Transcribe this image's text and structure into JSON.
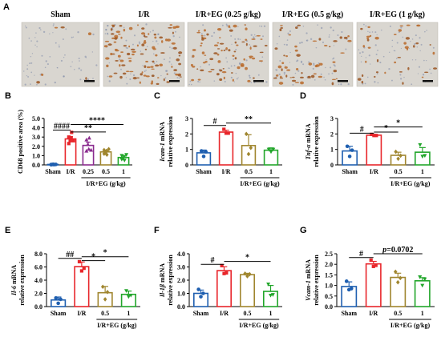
{
  "colors": {
    "Sham": "#1f5fb0",
    "I/R": "#e8262b",
    "I/R+EG (0.25 g/kg)": "#8a2b8e",
    "I/R+EG (0.5 g/kg)": "#a0862f",
    "I/R+EG (1 g/kg)": "#22a62b",
    "scale_bar": "#111111",
    "tissue_bg": "#d9d6d0"
  },
  "panels": {
    "A": {
      "label": "A",
      "images": [
        {
          "title": "Sham",
          "stain_density": 0.05
        },
        {
          "title": "I/R",
          "stain_density": 0.95
        },
        {
          "title": "I/R+EG (0.25 g/kg)",
          "stain_density": 0.7
        },
        {
          "title": "I/R+EG (0.5 g/kg)",
          "stain_density": 0.5
        },
        {
          "title": "I/R+EG (1 g/kg)",
          "stain_density": 0.35
        }
      ]
    }
  },
  "chart_data": [
    {
      "id": "B",
      "panel_label": "B",
      "type": "bar",
      "ylabel": "CD68 positive area (%)",
      "ylim": [
        0,
        5
      ],
      "yticks": [
        0,
        1,
        2,
        3,
        4,
        5
      ],
      "yticklabels": [
        "0.0",
        "1.0",
        "2.0",
        "3.0",
        "4.0",
        "5.0"
      ],
      "categories": [
        "Sham",
        "I/R",
        "0.25",
        "0.5",
        "1"
      ],
      "values": [
        0.05,
        2.8,
        2.1,
        1.4,
        0.8
      ],
      "errors": [
        0.03,
        0.25,
        0.35,
        0.15,
        0.15
      ],
      "points": [
        [
          0.02,
          0.04,
          0.05,
          0.06,
          0.03,
          0.05
        ],
        [
          3.0,
          2.3,
          2.6,
          2.9,
          3.5,
          2.6
        ],
        [
          2.7,
          1.5,
          2.2,
          1.7,
          2.9,
          1.6
        ],
        [
          1.2,
          1.6,
          1.3,
          1.5,
          1.1,
          1.7
        ],
        [
          0.6,
          1.0,
          0.7,
          0.9,
          0.5,
          1.1
        ]
      ],
      "group_label": "I/R+EG (g/kg)",
      "group_span": [
        2,
        4
      ],
      "sigs": [
        {
          "from": 0,
          "to": 1,
          "text": "####",
          "y": 3.75
        },
        {
          "from": 1,
          "to": 4,
          "text": "****",
          "y": 4.35
        },
        {
          "from": 1,
          "to": 3,
          "text": "**",
          "y": 3.55
        }
      ]
    },
    {
      "id": "C",
      "panel_label": "C",
      "type": "bar",
      "ylabel": "Icam-1 mRNA",
      "ylabel_gene": "Icam-1",
      "ylabel_suffix": " mRNA",
      "ylabel2": "relative expression",
      "ylim": [
        0,
        3
      ],
      "yticks": [
        0,
        1,
        2,
        3
      ],
      "yticklabels": [
        "0",
        "1",
        "2",
        "3"
      ],
      "categories": [
        "Sham",
        "I/R",
        "0.5",
        "1"
      ],
      "values": [
        0.78,
        2.12,
        1.25,
        0.95
      ],
      "errors": [
        0.18,
        0.12,
        0.7,
        0.15
      ],
      "points": [
        [
          0.9,
          0.55,
          0.85
        ],
        [
          2.3,
          2.05,
          2.05
        ],
        [
          2.0,
          0.7,
          1.1
        ],
        [
          1.0,
          0.85,
          1.0
        ]
      ],
      "group_label": "I/R+EG (g/kg)",
      "group_span": [
        2,
        3
      ],
      "sigs": [
        {
          "from": 0,
          "to": 1,
          "text": "#",
          "y": 2.55
        },
        {
          "from": 1,
          "to": 3,
          "text": "**",
          "y": 2.7
        }
      ]
    },
    {
      "id": "D",
      "panel_label": "D",
      "type": "bar",
      "ylabel": "Tnf-α mRNA",
      "ylabel_gene": "Tnf-α",
      "ylabel_suffix": " mRNA",
      "ylabel2": "relative expression",
      "ylim": [
        0,
        3
      ],
      "yticks": [
        0,
        1,
        2,
        3
      ],
      "yticklabels": [
        "0",
        "1",
        "2",
        "3"
      ],
      "categories": [
        "Sham",
        "I/R",
        "0.5",
        "1"
      ],
      "values": [
        0.9,
        1.92,
        0.62,
        0.82
      ],
      "errors": [
        0.3,
        0.05,
        0.2,
        0.3
      ],
      "points": [
        [
          1.2,
          0.55,
          0.95
        ],
        [
          1.97,
          1.9,
          1.9
        ],
        [
          0.85,
          0.4,
          0.6
        ],
        [
          1.3,
          0.55,
          0.6
        ]
      ],
      "group_label": "I/R+EG (g/kg)",
      "group_span": [
        2,
        3
      ],
      "sigs": [
        {
          "from": 0,
          "to": 1,
          "text": "#",
          "y": 2.05
        },
        {
          "from": 1,
          "to": 3,
          "text": "*",
          "y": 2.45
        },
        {
          "from": 1,
          "to": 2,
          "text": "*",
          "y": 2.12
        }
      ]
    },
    {
      "id": "E",
      "panel_label": "E",
      "type": "bar",
      "ylabel": "Il-6 mRNA",
      "ylabel_gene": "Il-6",
      "ylabel_suffix": " mRNA",
      "ylabel2": "relative expression",
      "ylim": [
        0,
        8
      ],
      "yticks": [
        0,
        2,
        4,
        6,
        8
      ],
      "yticklabels": [
        "0.0",
        "2.0",
        "4.0",
        "6.0",
        "8.0"
      ],
      "categories": [
        "Sham",
        "I/R",
        "0.5",
        "1"
      ],
      "values": [
        1.0,
        6.05,
        2.1,
        1.85
      ],
      "errors": [
        0.45,
        0.7,
        0.95,
        0.5
      ],
      "points": [
        [
          1.3,
          0.5,
          1.1
        ],
        [
          6.8,
          5.4,
          5.8
        ],
        [
          3.0,
          1.1,
          2.2
        ],
        [
          2.4,
          1.5,
          1.7
        ]
      ],
      "group_label": "I/R+EG (g/kg)",
      "group_span": [
        2,
        3
      ],
      "sigs": [
        {
          "from": 0,
          "to": 1,
          "text": "##",
          "y": 7.3
        },
        {
          "from": 1,
          "to": 3,
          "text": "*",
          "y": 7.55
        },
        {
          "from": 1,
          "to": 2,
          "text": "*",
          "y": 6.95
        }
      ]
    },
    {
      "id": "F",
      "panel_label": "F",
      "type": "bar",
      "ylabel": "Il-1β mRNA",
      "ylabel_gene": "Il-1β",
      "ylabel_suffix": " mRNA",
      "ylabel2": "relative expression",
      "ylim": [
        0,
        4
      ],
      "yticks": [
        0,
        1,
        2,
        3,
        4
      ],
      "yticklabels": [
        "0.0",
        "1.0",
        "2.0",
        "3.0",
        "4.0"
      ],
      "categories": [
        "Sham",
        "I/R",
        "0.5",
        "1"
      ],
      "values": [
        1.0,
        2.72,
        2.42,
        1.15
      ],
      "errors": [
        0.25,
        0.3,
        0.1,
        0.45
      ],
      "points": [
        [
          1.3,
          0.75,
          1.0
        ],
        [
          3.1,
          2.5,
          2.55
        ],
        [
          2.5,
          2.3,
          2.45
        ],
        [
          1.7,
          0.85,
          0.9
        ]
      ],
      "group_label": "I/R+EG (g/kg)",
      "group_span": [
        2,
        3
      ],
      "sigs": [
        {
          "from": 0,
          "to": 1,
          "text": "#",
          "y": 3.2
        },
        {
          "from": 1,
          "to": 3,
          "text": "*",
          "y": 3.42
        }
      ]
    },
    {
      "id": "G",
      "panel_label": "G",
      "type": "bar",
      "ylabel": "Vcam-1 mRNA",
      "ylabel_gene": "Vcam-1",
      "ylabel_suffix": " mRNA",
      "ylabel2": "relative expression",
      "ylim": [
        0,
        2.5
      ],
      "yticks": [
        0,
        0.5,
        1.0,
        1.5,
        2.0,
        2.5
      ],
      "yticklabels": [
        "0.0",
        "0.5",
        "1.0",
        "1.5",
        "2.0",
        "2.5"
      ],
      "categories": [
        "Sham",
        "I/R",
        "0.5",
        "1"
      ],
      "values": [
        0.95,
        2.02,
        1.38,
        1.22
      ],
      "errors": [
        0.22,
        0.12,
        0.2,
        0.15
      ],
      "points": [
        [
          1.2,
          0.8,
          0.85
        ],
        [
          2.2,
          1.9,
          1.95
        ],
        [
          1.65,
          1.15,
          1.35
        ],
        [
          1.4,
          1.0,
          1.3
        ]
      ],
      "group_label": "I/R+EG (g/kg)",
      "group_span": [
        2,
        3
      ],
      "sigs": [
        {
          "from": 0,
          "to": 1,
          "text": "#",
          "y": 2.32
        },
        {
          "from": 1,
          "to": 3,
          "text": "p=0.0702",
          "y": 2.5,
          "italic_p": true
        }
      ]
    }
  ]
}
